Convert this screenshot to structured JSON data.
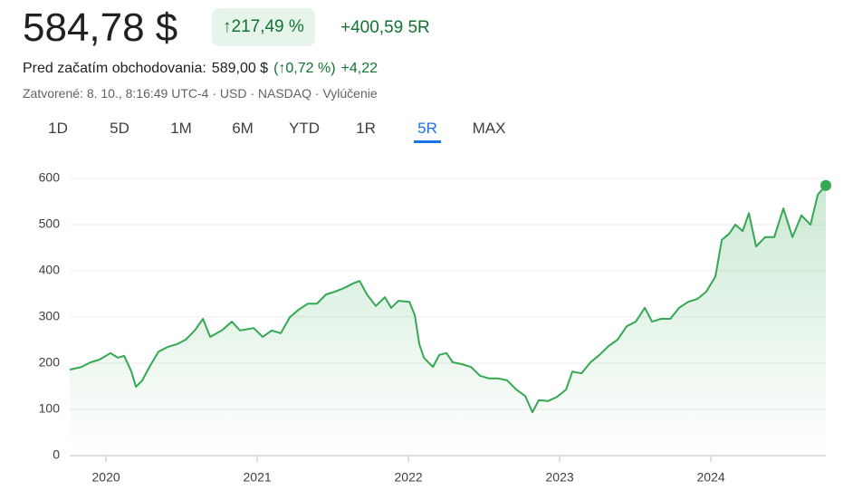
{
  "header": {
    "price": "584,78 $",
    "change_pct": "↑217,49 %",
    "change_abs": "+400,59 5R",
    "premarket_label": "Pred začatím obchodovania:",
    "premarket_price": "589,00 $",
    "premarket_pct": "(↑0,72 %)",
    "premarket_abs": "+4,22",
    "status": "Zatvorené: 8. 10., 8:16:49 UTC-4 · USD · NASDAQ · Vylúčenie"
  },
  "tabs": {
    "items": [
      "1D",
      "5D",
      "1M",
      "6M",
      "YTD",
      "1R",
      "5R",
      "MAX"
    ],
    "selected_index": 6
  },
  "chart_data": {
    "type": "line",
    "x": [
      2019.76,
      2019.838,
      2019.898,
      2019.958,
      2020.03,
      2020.078,
      2020.12,
      2020.168,
      2020.198,
      2020.24,
      2020.287,
      2020.347,
      2020.407,
      2020.467,
      2020.527,
      2020.587,
      2020.641,
      2020.689,
      2020.766,
      2020.832,
      2020.886,
      2020.976,
      2021.036,
      2021.096,
      2021.156,
      2021.216,
      2021.275,
      2021.335,
      2021.395,
      2021.455,
      2021.515,
      2021.575,
      2021.635,
      2021.677,
      2021.725,
      2021.784,
      2021.844,
      2021.886,
      2021.934,
      2022.006,
      2022.042,
      2022.072,
      2022.102,
      2022.162,
      2022.204,
      2022.251,
      2022.293,
      2022.353,
      2022.413,
      2022.473,
      2022.533,
      2022.593,
      2022.653,
      2022.713,
      2022.772,
      2022.82,
      2022.862,
      2022.922,
      2022.982,
      2023.042,
      2023.084,
      2023.144,
      2023.204,
      2023.263,
      2023.323,
      2023.383,
      2023.443,
      2023.503,
      2023.563,
      2023.611,
      2023.671,
      2023.731,
      2023.79,
      2023.85,
      2023.91,
      2023.97,
      2024.03,
      2024.072,
      2024.12,
      2024.162,
      2024.21,
      2024.251,
      2024.299,
      2024.359,
      2024.419,
      2024.479,
      2024.539,
      2024.599,
      2024.659,
      2024.707,
      2024.76
    ],
    "series": [
      {
        "color": "#34a853",
        "values": [
          186,
          192,
          202,
          208,
          222,
          212,
          216,
          182,
          149,
          163,
          192,
          225,
          235,
          241,
          251,
          271,
          296,
          257,
          271,
          290,
          271,
          276,
          257,
          271,
          265,
          300,
          316,
          329,
          329,
          349,
          355,
          363,
          373,
          378,
          349,
          324,
          343,
          320,
          335,
          333,
          304,
          241,
          212,
          192,
          218,
          222,
          202,
          198,
          192,
          173,
          167,
          167,
          163,
          143,
          129,
          94,
          120,
          118,
          127,
          143,
          182,
          178,
          202,
          218,
          237,
          251,
          280,
          290,
          320,
          290,
          296,
          296,
          320,
          333,
          339,
          355,
          388,
          467,
          480,
          500,
          486,
          525,
          453,
          473,
          473,
          535,
          473,
          520,
          500,
          565,
          584.78
        ]
      }
    ],
    "xlim": [
      2019.76,
      2024.76
    ],
    "xticks": [
      2020,
      2021,
      2022,
      2023,
      2024
    ],
    "ylim": [
      0,
      600
    ],
    "yticks": [
      0,
      100,
      200,
      300,
      400,
      500,
      600
    ],
    "grid": true
  }
}
